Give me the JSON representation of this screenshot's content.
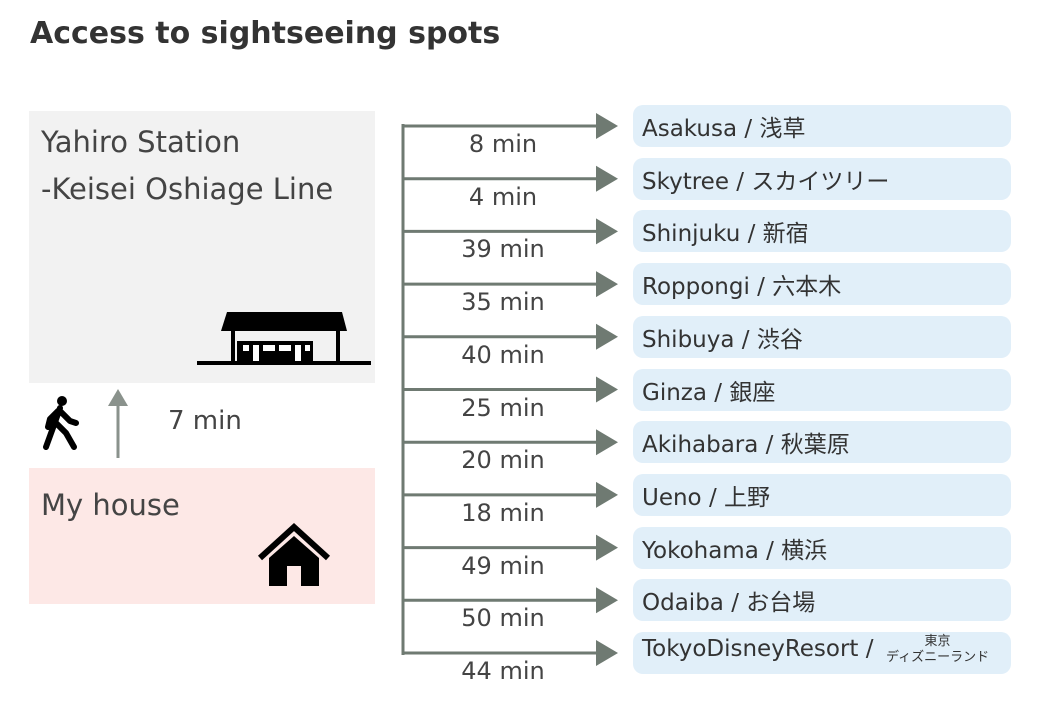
{
  "title": "Access to sightseeing spots",
  "station": {
    "name": "Yahiro Station\n-Keisei Oshiage Line",
    "icon": "train-station-icon"
  },
  "walk": {
    "time": "7 min",
    "icon": "walking-person-icon"
  },
  "house": {
    "name": "My house",
    "icon": "house-icon"
  },
  "arrow_color": "#6f7a72",
  "destinations": [
    {
      "name": "Asakusa / 浅草",
      "time": "8 min"
    },
    {
      "name": "Skytree / スカイツリー",
      "time": "4 min"
    },
    {
      "name": "Shinjuku / 新宿",
      "time": "39 min"
    },
    {
      "name": "Roppongi / 六本木",
      "time": "35 min"
    },
    {
      "name": "Shibuya / 渋谷",
      "time": "40 min"
    },
    {
      "name": "Ginza / 銀座",
      "time": "25 min"
    },
    {
      "name": "Akihabara / 秋葉原",
      "time": "20 min"
    },
    {
      "name": "Ueno / 上野",
      "time": "18 min"
    },
    {
      "name": "Yokohama / 横浜",
      "time": "49 min"
    },
    {
      "name": "Odaiba / お台場",
      "time": "50 min"
    },
    {
      "name": "TokyoDisneyResort /",
      "name_small_1": "東京",
      "name_small_2": "ディズニーランド",
      "time": "44 min"
    }
  ]
}
